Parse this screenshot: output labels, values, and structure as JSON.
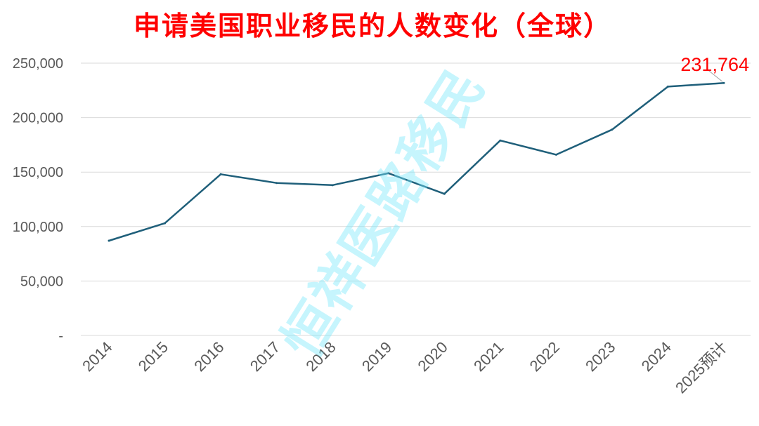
{
  "colors": {
    "title": "#ff0000",
    "line": "#1f5f7a",
    "grid": "#d9d9d9",
    "axis_text": "#595959",
    "annotation": "#ff0000",
    "watermark": "#78e8fa"
  },
  "watermark": "恒祥医路移民",
  "chart_data": {
    "type": "line",
    "title": "申请美国职业移民的人数变化（全球）",
    "xlabel": "",
    "ylabel": "",
    "categories": [
      "2014",
      "2015",
      "2016",
      "2017",
      "2018",
      "2019",
      "2020",
      "2021",
      "2022",
      "2023",
      "2024",
      "2025预计"
    ],
    "series": [
      {
        "values": [
          87000,
          103000,
          148000,
          140000,
          138000,
          149000,
          130000,
          179000,
          166000,
          189000,
          228500,
          231764
        ]
      }
    ],
    "y_ticks": [
      {
        "value": 0,
        "label": "-"
      },
      {
        "value": 50000,
        "label": "50,000"
      },
      {
        "value": 100000,
        "label": "100,000"
      },
      {
        "value": 150000,
        "label": "150,000"
      },
      {
        "value": 200000,
        "label": "200,000"
      },
      {
        "value": 250000,
        "label": "250,000"
      }
    ],
    "ylim": [
      0,
      250000
    ],
    "grid": true,
    "legend": "none",
    "annotations": [
      {
        "category_index": 11,
        "text": "231,764"
      }
    ]
  }
}
